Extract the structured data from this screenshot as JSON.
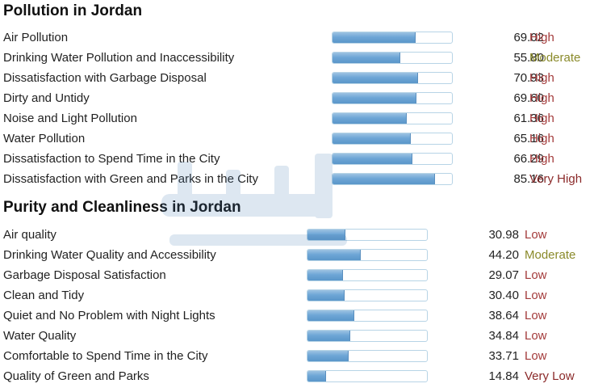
{
  "sections": [
    {
      "title": "Pollution in Jordan",
      "rows": [
        {
          "label": "Air Pollution",
          "value": "69.02",
          "level": "High",
          "fraction": 0.6902
        },
        {
          "label": "Drinking Water Pollution and Inaccessibility",
          "value": "55.80",
          "level": "Moderate",
          "fraction": 0.558
        },
        {
          "label": "Dissatisfaction with Garbage Disposal",
          "value": "70.93",
          "level": "High",
          "fraction": 0.7093
        },
        {
          "label": "Dirty and Untidy",
          "value": "69.60",
          "level": "High",
          "fraction": 0.696
        },
        {
          "label": "Noise and Light Pollution",
          "value": "61.36",
          "level": "High",
          "fraction": 0.6136
        },
        {
          "label": "Water Pollution",
          "value": "65.16",
          "level": "High",
          "fraction": 0.6516
        },
        {
          "label": "Dissatisfaction to Spend Time in the City",
          "value": "66.29",
          "level": "High",
          "fraction": 0.6629
        },
        {
          "label": "Dissatisfaction with Green and Parks in the City",
          "value": "85.16",
          "level": "Very High",
          "fraction": 0.8516
        }
      ]
    },
    {
      "title": "Purity and Cleanliness in Jordan",
      "rows": [
        {
          "label": "Air quality",
          "value": "30.98",
          "level": "Low",
          "fraction": 0.3098
        },
        {
          "label": "Drinking Water Quality and Accessibility",
          "value": "44.20",
          "level": "Moderate",
          "fraction": 0.442
        },
        {
          "label": "Garbage Disposal Satisfaction",
          "value": "29.07",
          "level": "Low",
          "fraction": 0.2907
        },
        {
          "label": "Clean and Tidy",
          "value": "30.40",
          "level": "Low",
          "fraction": 0.304
        },
        {
          "label": "Quiet and No Problem with Night Lights",
          "value": "38.64",
          "level": "Low",
          "fraction": 0.3864
        },
        {
          "label": "Water Quality",
          "value": "34.84",
          "level": "Low",
          "fraction": 0.3484
        },
        {
          "label": "Comfortable to Spend Time in the City",
          "value": "33.71",
          "level": "Low",
          "fraction": 0.3371
        },
        {
          "label": "Quality of Green and Parks",
          "value": "14.84",
          "level": "Very Low",
          "fraction": 0.1484
        }
      ]
    }
  ],
  "level_colors": {
    "Very Low": "#8b2a2a",
    "Low": "#a33a3a",
    "Moderate": "#8a8a2a",
    "High": "#a33a3a",
    "Very High": "#8b2a2a"
  },
  "watermark": {
    "icon": "arabic-site-logo-watermark"
  }
}
